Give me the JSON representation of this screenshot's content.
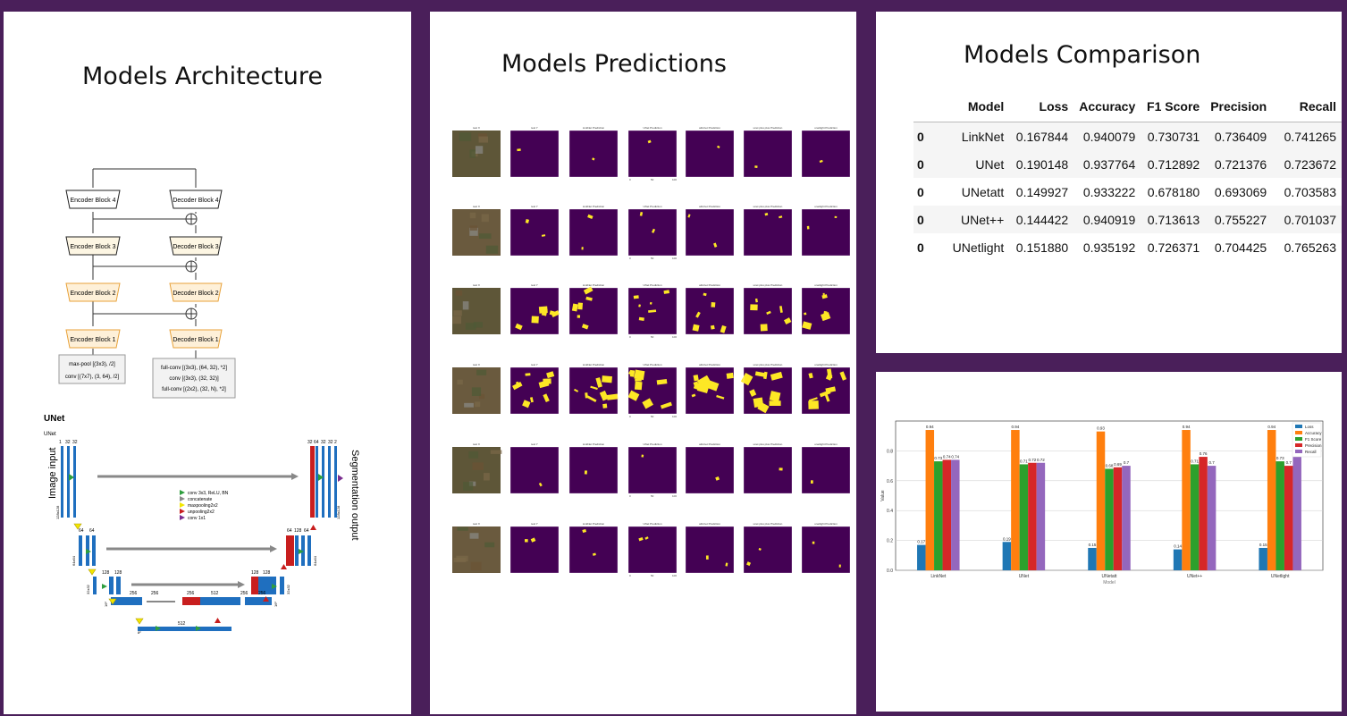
{
  "panels": {
    "architecture": {
      "title": "Models Architecture",
      "linknet": {
        "encoders": [
          "Encoder Block 4",
          "Encoder Block 3",
          "Encoder Block 2",
          "Encoder Block 1"
        ],
        "decoders": [
          "Decoder Block 4",
          "Decoder Block 3",
          "Decoder Block 2",
          "Decoder Block 1"
        ],
        "input_box": [
          "max-pool [(3x3), /2]",
          "conv [(7x7), (3, 64), /2]"
        ],
        "output_box": [
          "full-conv [(3x3), (64, 32), *2]",
          "conv [(3x3), (32, 32)]",
          "full-conv [(2x2), (32, N), *2]"
        ]
      },
      "unet": {
        "heading": "UNet",
        "sub": "UNet",
        "input_label": "Image input",
        "output_label": "Segmentation output",
        "channel_labels": [
          "1",
          "32",
          "32",
          "32",
          "64",
          "32",
          "32",
          "2",
          "64",
          "64",
          "64",
          "128",
          "64",
          "128",
          "128",
          "128",
          "256",
          "128",
          "256",
          "256",
          "256",
          "512",
          "256",
          "512"
        ],
        "resolution_labels": [
          "128x128",
          "128x128",
          "64x64",
          "64x64",
          "32x32",
          "32x32",
          "16²",
          "16²",
          "8²"
        ],
        "legend": [
          "conv 3x3, ReLU, BN",
          "concatenate",
          "maxpooling2x2",
          "unpooling2x2",
          "conv 1x1"
        ]
      }
    },
    "predictions": {
      "title": "Models Predictions",
      "columns": [
        "test X",
        "test Y",
        "LinkNet Prediction",
        "UNet Prediction",
        "attUnet Prediction",
        "unet plus plus Prediction",
        "unetlight Prediction"
      ],
      "tick_labels": [
        "0",
        "50",
        "100"
      ]
    },
    "comparison": {
      "title": "Models Comparison",
      "headers": [
        "",
        "Model",
        "Loss",
        "Accuracy",
        "F1 Score",
        "Precision",
        "Recall"
      ],
      "rows": [
        [
          "0",
          "LinkNet",
          "0.167844",
          "0.940079",
          "0.730731",
          "0.736409",
          "0.741265"
        ],
        [
          "0",
          "UNet",
          "0.190148",
          "0.937764",
          "0.712892",
          "0.721376",
          "0.723672"
        ],
        [
          "0",
          "UNetatt",
          "0.149927",
          "0.933222",
          "0.678180",
          "0.693069",
          "0.703583"
        ],
        [
          "0",
          "UNet++",
          "0.144422",
          "0.940919",
          "0.713613",
          "0.755227",
          "0.701037"
        ],
        [
          "0",
          "UNetlight",
          "0.151880",
          "0.935192",
          "0.726371",
          "0.704425",
          "0.765263"
        ]
      ]
    }
  },
  "chart_data": {
    "type": "bar",
    "categories": [
      "LinkNet",
      "UNet",
      "UNetatt",
      "UNet++",
      "UNetlight"
    ],
    "series": [
      {
        "name": "Loss",
        "color": "#1f77b4",
        "values": [
          0.17,
          0.19,
          0.15,
          0.14,
          0.15
        ],
        "labels": [
          "0.17",
          "0.19",
          "0.15",
          "0.14",
          "0.15"
        ]
      },
      {
        "name": "Accuracy",
        "color": "#ff7f0e",
        "values": [
          0.94,
          0.94,
          0.93,
          0.94,
          0.94
        ],
        "labels": [
          "0.94",
          "0.94",
          "0.93",
          "0.94",
          "0.94"
        ]
      },
      {
        "name": "F1 Score",
        "color": "#2ca02c",
        "values": [
          0.73,
          0.71,
          0.68,
          0.71,
          0.73
        ],
        "labels": [
          "0.73",
          "0.71",
          "0.68",
          "0.71",
          "0.73"
        ]
      },
      {
        "name": "Precision",
        "color": "#d62728",
        "values": [
          0.74,
          0.72,
          0.69,
          0.76,
          0.7
        ],
        "labels": [
          "0.74",
          "0.72",
          "0.69",
          "0.76",
          "0.7"
        ]
      },
      {
        "name": "Recall",
        "color": "#9467bd",
        "values": [
          0.74,
          0.72,
          0.7,
          0.7,
          0.77
        ],
        "labels": [
          "0.74",
          "0.72",
          "0.7",
          "0.7",
          ""
        ]
      }
    ],
    "ylabel": "Value",
    "xlabel": "Model",
    "ylim": [
      0,
      1.0
    ],
    "yticks": [
      "0.0",
      "0.2",
      "0.4",
      "0.6",
      "0.8"
    ],
    "grid": true,
    "legend": "top-right"
  }
}
